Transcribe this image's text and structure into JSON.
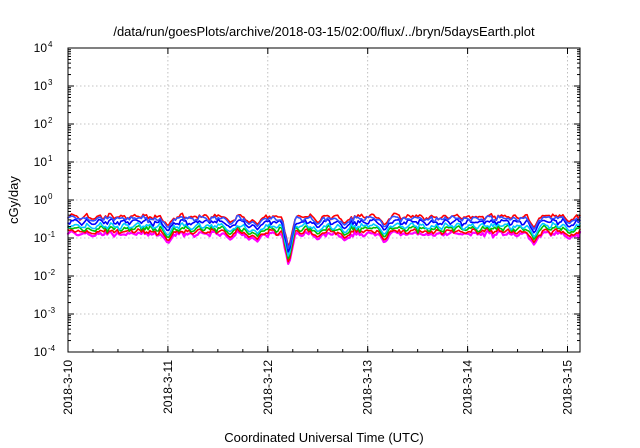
{
  "chart_data": {
    "type": "line",
    "title": "/data/run/goesPlots/archive/2018-03-15/02:00/flux/../bryn/5daysEarth.plot",
    "xlabel": "Coordinated Universal Time (UTC)",
    "ylabel": "cGy/day",
    "xlim": [
      "2018-03-10",
      "2018-03-15 03:00"
    ],
    "ylim": [
      0.0001,
      10000
    ],
    "yscale": "log",
    "grid": true,
    "x_ticks": [
      {
        "date": "2018-03-10",
        "label": "2018-3-10"
      },
      {
        "date": "2018-03-11",
        "label": "2018-3-11"
      },
      {
        "date": "2018-03-12",
        "label": "2018-3-12"
      },
      {
        "date": "2018-03-13",
        "label": "2018-3-13"
      },
      {
        "date": "2018-03-14",
        "label": "2018-3-14"
      },
      {
        "date": "2018-03-15",
        "label": "2018-3-15"
      }
    ],
    "y_ticks": [
      {
        "value": 0.0001,
        "base": "10",
        "exp": "-4"
      },
      {
        "value": 0.001,
        "base": "10",
        "exp": "-3"
      },
      {
        "value": 0.01,
        "base": "10",
        "exp": "-2"
      },
      {
        "value": 0.1,
        "base": "10",
        "exp": "-1"
      },
      {
        "value": 1,
        "base": "10",
        "exp": "0"
      },
      {
        "value": 10,
        "base": "10",
        "exp": "1"
      },
      {
        "value": 100,
        "base": "10",
        "exp": "2"
      },
      {
        "value": 1000,
        "base": "10",
        "exp": "3"
      },
      {
        "value": 10000,
        "base": "10",
        "exp": "4"
      }
    ],
    "series_colors": [
      "#ff00ff",
      "#ff0000",
      "#00c000",
      "#00c8ff",
      "#0000ff",
      "#ff0000",
      "#3050ff"
    ],
    "series_levels": [
      0.13,
      0.15,
      0.18,
      0.21,
      0.27,
      0.37,
      0.33
    ],
    "dips": [
      {
        "date": "2018-03-10 06:00",
        "value": 0.11
      },
      {
        "date": "2018-03-11 00:00",
        "value": 0.07
      },
      {
        "date": "2018-03-11 15:00",
        "value": 0.09
      },
      {
        "date": "2018-03-11 19:30",
        "value": 0.09
      },
      {
        "date": "2018-03-11 21:30",
        "value": 0.08
      },
      {
        "date": "2018-03-12 05:00",
        "value": 0.018
      },
      {
        "date": "2018-03-12 12:00",
        "value": 0.09
      },
      {
        "date": "2018-03-12 18:30",
        "value": 0.085
      },
      {
        "date": "2018-03-13 04:00",
        "value": 0.075
      },
      {
        "date": "2018-03-14 16:00",
        "value": 0.065
      },
      {
        "date": "2018-03-15 00:30",
        "value": 0.095
      }
    ]
  }
}
